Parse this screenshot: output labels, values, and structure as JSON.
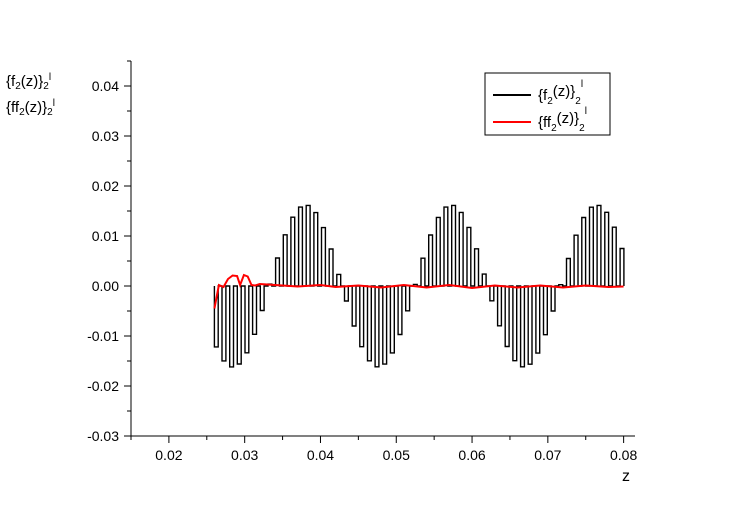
{
  "chart_data": {
    "type": "line",
    "xlabel": "z",
    "ylabel_lines": [
      {
        "base": "{f",
        "sub1": "2",
        "mid": "(z)}",
        "sub2": "2",
        "sup": "l"
      },
      {
        "base": "{ff",
        "sub1": "2",
        "mid": "(z)}",
        "sub2": "2",
        "sup": "l"
      }
    ],
    "xlim": [
      0.015,
      0.0815
    ],
    "ylim": [
      -0.03,
      0.045
    ],
    "xticks": [
      0.02,
      0.03,
      0.04,
      0.05,
      0.06,
      0.07,
      0.08
    ],
    "xtick_labels": [
      "0.02",
      "0.03",
      "0.04",
      "0.05",
      "0.06",
      "0.07",
      "0.08"
    ],
    "yticks": [
      -0.03,
      -0.02,
      -0.01,
      0.0,
      0.01,
      0.02,
      0.03,
      0.04
    ],
    "ytick_labels": [
      "-0.03",
      "-0.02",
      "-0.01",
      "0.00",
      "0.01",
      "0.02",
      "0.03",
      "0.04"
    ],
    "grid": false,
    "legend_position": "top-right",
    "series": [
      {
        "legend": {
          "base": "{f",
          "sub1": "2",
          "mid": "(z)}",
          "sub2": "2",
          "sup": "l"
        },
        "color": "#000000",
        "x_start": 0.026,
        "x_end": 0.0802,
        "amplitude": 0.0162,
        "period": 0.0192,
        "peak_at": 0.0378,
        "sampling_step": 0.00101
      },
      {
        "legend": {
          "base": "{ff",
          "sub1": "2",
          "mid": "(z)}",
          "sub2": "2",
          "sup": "l"
        },
        "color": "#ff0000",
        "points": [
          [
            0.026,
            -0.0045
          ],
          [
            0.0266,
            0.0002
          ],
          [
            0.0272,
            -0.0002
          ],
          [
            0.0278,
            0.0014
          ],
          [
            0.0284,
            0.0021
          ],
          [
            0.029,
            0.002
          ],
          [
            0.0294,
            0.0002
          ],
          [
            0.0299,
            0.0022
          ],
          [
            0.0304,
            0.0019
          ],
          [
            0.0309,
            0.0002
          ],
          [
            0.0314,
            0.0001
          ],
          [
            0.032,
            0.0004
          ],
          [
            0.034,
            0.0002
          ],
          [
            0.037,
            -0.0001
          ],
          [
            0.04,
            0.0002
          ],
          [
            0.042,
            -0.0002
          ],
          [
            0.045,
            0.0001
          ],
          [
            0.048,
            -0.0003
          ],
          [
            0.051,
            0.0002
          ],
          [
            0.054,
            -0.0003
          ],
          [
            0.057,
            0.0002
          ],
          [
            0.06,
            -0.0004
          ],
          [
            0.063,
            0.0001
          ],
          [
            0.066,
            -0.0003
          ],
          [
            0.069,
            0.0001
          ],
          [
            0.072,
            -0.0003
          ],
          [
            0.075,
            0.0001
          ],
          [
            0.078,
            -0.0002
          ],
          [
            0.08,
            -0.0001
          ]
        ]
      }
    ]
  }
}
